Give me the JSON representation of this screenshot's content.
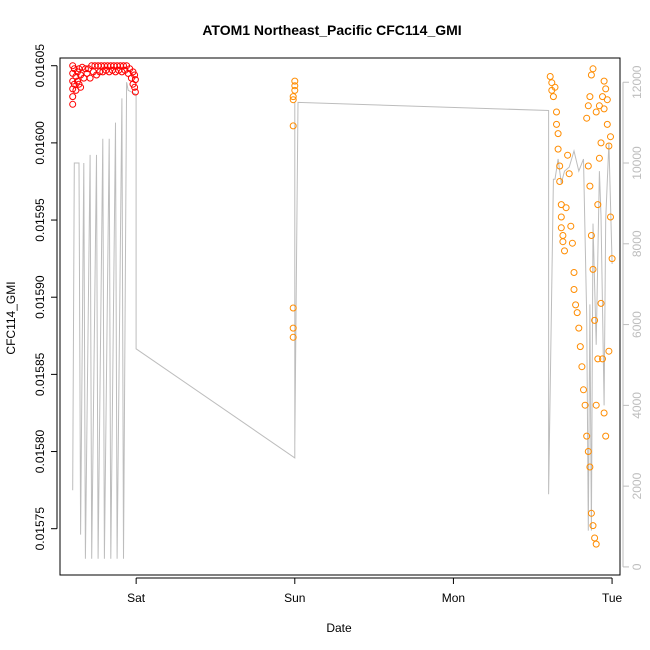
{
  "chart_data": {
    "type": "scatter",
    "title": "ATOM1 Northeast_Pacific CFC114_GMI",
    "xlabel": "Date",
    "ylabel": "CFC114_GMI",
    "x_ticks": [
      "Sat",
      "Sun",
      "Mon",
      "Tue"
    ],
    "y_ticks": [
      "0.01575",
      "0.01580",
      "0.01585",
      "0.01590",
      "0.01595",
      "0.01600",
      "0.01605"
    ],
    "y_right_ticks": [
      "0",
      "2000",
      "4000",
      "6000",
      "8000",
      "10000",
      "12000"
    ],
    "xlim": [
      -0.48,
      3.05
    ],
    "ylim": [
      0.01572,
      0.016055
    ],
    "y_right_lim": [
      -200,
      12600
    ],
    "grid": false,
    "colors": {
      "series_red": "#ff0000",
      "series_orange": "#ff8c00",
      "altitude_line": "#bdbdbd"
    },
    "series": [
      {
        "color": "red",
        "points": [
          [
            -0.4,
            0.01605
          ],
          [
            -0.4,
            0.016045
          ],
          [
            -0.4,
            0.01604
          ],
          [
            -0.4,
            0.016035
          ],
          [
            -0.4,
            0.01603
          ],
          [
            -0.4,
            0.016025
          ],
          [
            -0.39,
            0.016048
          ],
          [
            -0.39,
            0.016038
          ],
          [
            -0.38,
            0.016043
          ],
          [
            -0.38,
            0.016034
          ],
          [
            -0.37,
            0.016046
          ],
          [
            -0.37,
            0.01604
          ],
          [
            -0.36,
            0.016048
          ],
          [
            -0.36,
            0.016038
          ],
          [
            -0.35,
            0.016044
          ],
          [
            -0.35,
            0.016036
          ],
          [
            -0.34,
            0.016049
          ],
          [
            -0.33,
            0.016042
          ],
          [
            -0.32,
            0.016048
          ],
          [
            -0.31,
            0.016045
          ],
          [
            -0.3,
            0.016048
          ],
          [
            -0.29,
            0.016042
          ],
          [
            -0.28,
            0.01605
          ],
          [
            -0.27,
            0.016046
          ],
          [
            -0.26,
            0.01605
          ],
          [
            -0.25,
            0.016044
          ],
          [
            -0.24,
            0.01605
          ],
          [
            -0.23,
            0.016046
          ],
          [
            -0.22,
            0.01605
          ],
          [
            -0.21,
            0.016046
          ],
          [
            -0.2,
            0.01605
          ],
          [
            -0.19,
            0.016047
          ],
          [
            -0.18,
            0.01605
          ],
          [
            -0.17,
            0.016046
          ],
          [
            -0.16,
            0.01605
          ],
          [
            -0.15,
            0.016047
          ],
          [
            -0.14,
            0.01605
          ],
          [
            -0.13,
            0.016046
          ],
          [
            -0.12,
            0.01605
          ],
          [
            -0.11,
            0.016047
          ],
          [
            -0.1,
            0.01605
          ],
          [
            -0.09,
            0.016046
          ],
          [
            -0.08,
            0.01605
          ],
          [
            -0.07,
            0.016047
          ],
          [
            -0.06,
            0.01605
          ],
          [
            -0.05,
            0.016045
          ],
          [
            -0.04,
            0.016048
          ],
          [
            -0.03,
            0.016042
          ],
          [
            -0.02,
            0.016046
          ],
          [
            -0.02,
            0.016038
          ],
          [
            -0.01,
            0.016044
          ],
          [
            -0.01,
            0.016036
          ],
          [
            -0.005,
            0.016041
          ],
          [
            -0.005,
            0.016033
          ]
        ]
      },
      {
        "color": "orange",
        "points": [
          [
            1.0,
            0.01604
          ],
          [
            1.0,
            0.016037
          ],
          [
            1.0,
            0.016034
          ],
          [
            0.99,
            0.01603
          ],
          [
            0.99,
            0.016028
          ],
          [
            0.99,
            0.016011
          ],
          [
            0.99,
            0.015893
          ],
          [
            0.99,
            0.01588
          ],
          [
            0.99,
            0.015874
          ],
          [
            2.61,
            0.016043
          ],
          [
            2.62,
            0.016039
          ],
          [
            2.62,
            0.016034
          ],
          [
            2.63,
            0.01603
          ],
          [
            2.64,
            0.016036
          ],
          [
            2.65,
            0.01602
          ],
          [
            2.65,
            0.016012
          ],
          [
            2.66,
            0.016006
          ],
          [
            2.66,
            0.015996
          ],
          [
            2.67,
            0.015985
          ],
          [
            2.67,
            0.015975
          ],
          [
            2.68,
            0.01596
          ],
          [
            2.68,
            0.015952
          ],
          [
            2.68,
            0.015945
          ],
          [
            2.69,
            0.01594
          ],
          [
            2.69,
            0.015936
          ],
          [
            2.7,
            0.01593
          ],
          [
            2.71,
            0.015958
          ],
          [
            2.72,
            0.015992
          ],
          [
            2.73,
            0.01598
          ],
          [
            2.74,
            0.015946
          ],
          [
            2.75,
            0.015935
          ],
          [
            2.76,
            0.015916
          ],
          [
            2.76,
            0.015905
          ],
          [
            2.77,
            0.015895
          ],
          [
            2.78,
            0.01589
          ],
          [
            2.79,
            0.01588
          ],
          [
            2.8,
            0.015868
          ],
          [
            2.81,
            0.015855
          ],
          [
            2.82,
            0.01584
          ],
          [
            2.83,
            0.01583
          ],
          [
            2.84,
            0.01581
          ],
          [
            2.85,
            0.0158
          ],
          [
            2.86,
            0.01579
          ],
          [
            2.87,
            0.01576
          ],
          [
            2.88,
            0.015752
          ],
          [
            2.89,
            0.015744
          ],
          [
            2.9,
            0.01574
          ],
          [
            2.91,
            0.01596
          ],
          [
            2.92,
            0.01599
          ],
          [
            2.93,
            0.016
          ],
          [
            2.94,
            0.01603
          ],
          [
            2.95,
            0.01604
          ],
          [
            2.96,
            0.016035
          ],
          [
            2.97,
            0.016012
          ],
          [
            2.98,
            0.015998
          ],
          [
            2.99,
            0.015952
          ],
          [
            3.0,
            0.015925
          ],
          [
            2.88,
            0.016048
          ],
          [
            2.87,
            0.016044
          ],
          [
            2.86,
            0.01603
          ],
          [
            2.85,
            0.016024
          ],
          [
            2.84,
            0.016016
          ],
          [
            2.9,
            0.01602
          ],
          [
            2.92,
            0.016024
          ],
          [
            2.95,
            0.016022
          ],
          [
            2.97,
            0.016028
          ],
          [
            2.99,
            0.016004
          ],
          [
            2.93,
            0.015896
          ],
          [
            2.94,
            0.01586
          ],
          [
            2.95,
            0.015825
          ],
          [
            2.96,
            0.01581
          ],
          [
            2.98,
            0.015865
          ],
          [
            2.91,
            0.01586
          ],
          [
            2.9,
            0.01583
          ],
          [
            2.89,
            0.015885
          ],
          [
            2.88,
            0.015918
          ],
          [
            2.87,
            0.01594
          ],
          [
            2.86,
            0.015972
          ],
          [
            2.85,
            0.015985
          ]
        ]
      }
    ],
    "secondary_series": {
      "name": "altitude",
      "axis": "right",
      "points": [
        [
          -0.4,
          1900
        ],
        [
          -0.39,
          10000
        ],
        [
          -0.36,
          10000
        ],
        [
          -0.35,
          800
        ],
        [
          -0.33,
          10000
        ],
        [
          -0.32,
          200
        ],
        [
          -0.29,
          10200
        ],
        [
          -0.28,
          200
        ],
        [
          -0.25,
          10200
        ],
        [
          -0.24,
          200
        ],
        [
          -0.21,
          10600
        ],
        [
          -0.2,
          200
        ],
        [
          -0.17,
          10600
        ],
        [
          -0.16,
          200
        ],
        [
          -0.13,
          11000
        ],
        [
          -0.12,
          200
        ],
        [
          -0.09,
          11600
        ],
        [
          -0.08,
          200
        ],
        [
          -0.06,
          12000
        ],
        [
          -0.05,
          11800
        ],
        [
          0.0,
          11700
        ],
        [
          0.0,
          5400
        ],
        [
          1.0,
          2700
        ],
        [
          1.0,
          11500
        ],
        [
          1.0,
          7000
        ],
        [
          1.0,
          3000
        ],
        [
          1.02,
          11500
        ],
        [
          2.6,
          11300
        ],
        [
          2.6,
          1800
        ],
        [
          2.63,
          9600
        ],
        [
          2.64,
          9600
        ],
        [
          2.66,
          10100
        ],
        [
          2.68,
          9500
        ],
        [
          2.7,
          9800
        ],
        [
          2.73,
          9900
        ],
        [
          2.76,
          10300
        ],
        [
          2.79,
          9800
        ],
        [
          2.82,
          10100
        ],
        [
          2.84,
          6200
        ],
        [
          2.85,
          900
        ],
        [
          2.86,
          6500
        ],
        [
          2.87,
          900
        ],
        [
          2.88,
          8500
        ],
        [
          2.9,
          5500
        ],
        [
          2.92,
          9800
        ],
        [
          2.93,
          8700
        ],
        [
          2.95,
          4000
        ],
        [
          2.96,
          8600
        ],
        [
          2.98,
          10500
        ],
        [
          3.0,
          7500
        ]
      ]
    }
  }
}
